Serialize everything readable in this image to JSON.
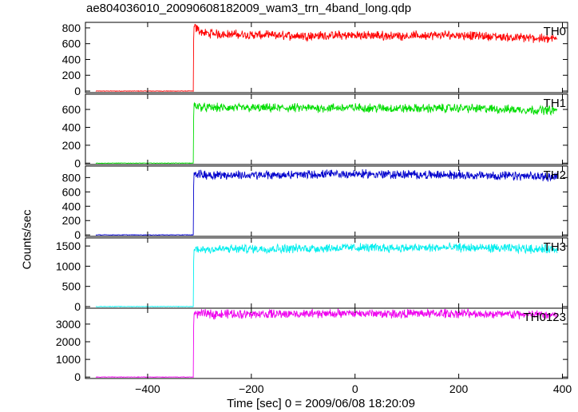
{
  "chart_data": {
    "type": "line",
    "title": "ae804036010_20090608182009_wam3_trn_4band_long.qdp",
    "xlabel": "Time [sec] 0 = 2009/06/08 18:20:09",
    "ylabel": "Counts/sec",
    "xlim": [
      -520,
      410
    ],
    "xticks": [
      -400,
      -200,
      0,
      200,
      400
    ],
    "grid": false,
    "panels": [
      {
        "name": "TH0",
        "color": "#ff0000",
        "ylim": [
          -20,
          870
        ],
        "yticks": [
          0,
          200,
          400,
          600,
          800
        ],
        "x": [
          -500,
          -312,
          -311,
          -306,
          -290,
          -200,
          -100,
          0,
          100,
          200,
          300,
          390
        ],
        "y": [
          0,
          0,
          820,
          790,
          730,
          710,
          700,
          705,
          700,
          710,
          680,
          660
        ]
      },
      {
        "name": "TH1",
        "color": "#00dd00",
        "ylim": [
          -15,
          770
        ],
        "yticks": [
          0,
          200,
          400,
          600
        ],
        "x": [
          -500,
          -312,
          -311,
          -306,
          -290,
          -200,
          -100,
          0,
          100,
          200,
          300,
          390
        ],
        "y": [
          0,
          0,
          650,
          640,
          620,
          615,
          615,
          620,
          610,
          615,
          600,
          590
        ]
      },
      {
        "name": "TH2",
        "color": "#0000cc",
        "ylim": [
          -20,
          960
        ],
        "yticks": [
          0,
          200,
          400,
          600,
          800
        ],
        "x": [
          -500,
          -312,
          -311,
          -306,
          -290,
          -200,
          -100,
          0,
          100,
          200,
          300,
          390
        ],
        "y": [
          0,
          0,
          860,
          850,
          840,
          830,
          840,
          850,
          840,
          835,
          820,
          810
        ]
      },
      {
        "name": "TH3",
        "color": "#00eeee",
        "ylim": [
          -40,
          1700
        ],
        "yticks": [
          0,
          500,
          1000,
          1500
        ],
        "x": [
          -500,
          -312,
          -311,
          -306,
          -290,
          -200,
          -100,
          0,
          100,
          200,
          300,
          390
        ],
        "y": [
          0,
          0,
          1400,
          1420,
          1420,
          1430,
          1440,
          1460,
          1450,
          1460,
          1440,
          1420
        ]
      },
      {
        "name": "TH0123",
        "color": "#ee00ee",
        "ylim": [
          -80,
          3900
        ],
        "yticks": [
          0,
          1000,
          2000,
          3000
        ],
        "x": [
          -500,
          -312,
          -311,
          -306,
          -290,
          -200,
          -100,
          0,
          100,
          200,
          300,
          390
        ],
        "y": [
          0,
          0,
          3650,
          3600,
          3580,
          3570,
          3580,
          3600,
          3590,
          3600,
          3550,
          3520
        ]
      }
    ]
  }
}
